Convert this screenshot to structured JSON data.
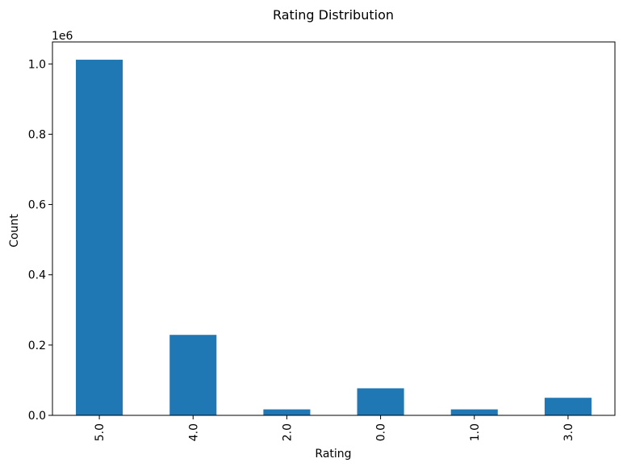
{
  "chart_data": {
    "type": "bar",
    "title": "Rating Distribution",
    "xlabel": "Rating",
    "ylabel": "Count",
    "y_scale_label": "1e6",
    "categories": [
      "5.0",
      "4.0",
      "2.0",
      "0.0",
      "1.0",
      "3.0"
    ],
    "values": [
      1012000,
      229000,
      17000,
      77000,
      17000,
      50000
    ],
    "ylim": [
      0,
      1062600
    ],
    "y_ticks": [
      0,
      200000,
      400000,
      600000,
      800000,
      1000000
    ],
    "y_tick_labels": [
      "0.0",
      "0.2",
      "0.4",
      "0.6",
      "0.8",
      "1.0"
    ],
    "bar_color": "#1f77b4",
    "grid": false,
    "legend": "none"
  }
}
